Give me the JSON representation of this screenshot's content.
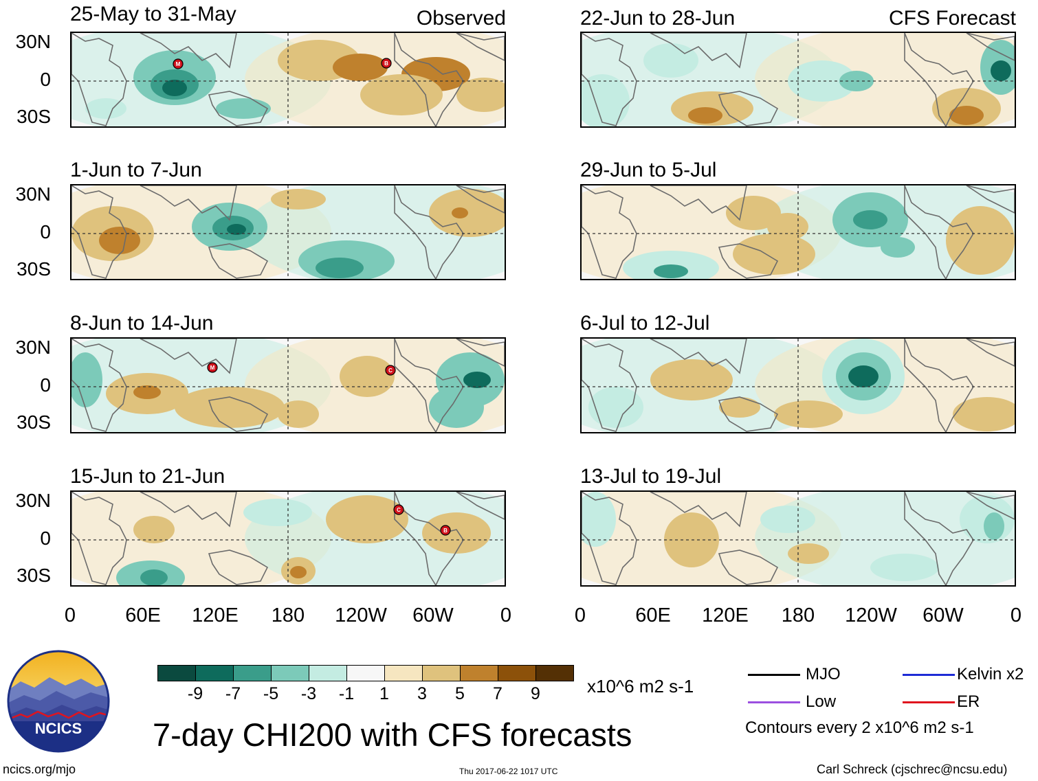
{
  "figure": {
    "main_title": "7-day CHI200 with CFS forecasts",
    "units": "x10^6 m2 s-1",
    "contours_note": "Contours every 2 x10^6 m2 s-1",
    "footer_left": "ncics.org/mjo",
    "footer_center": "Thu 2017-06-22 1017 UTC",
    "footer_right": "Carl Schreck (cjschrec@ncsu.edu)",
    "logo_text": "NCICS"
  },
  "columns": {
    "observed_label": "Observed",
    "forecast_label": "CFS Forecast"
  },
  "panels": [
    {
      "title": "25-May to 31-May",
      "tag": "Observed",
      "storms": [
        "M",
        "B"
      ]
    },
    {
      "title": "1-Jun to 7-Jun",
      "storms": []
    },
    {
      "title": "8-Jun to 14-Jun",
      "storms": [
        "M",
        "C"
      ]
    },
    {
      "title": "15-Jun to 21-Jun",
      "storms": [
        "C",
        "B"
      ]
    },
    {
      "title": "22-Jun to 28-Jun",
      "tag": "CFS Forecast",
      "storms": []
    },
    {
      "title": "29-Jun to 5-Jul",
      "storms": []
    },
    {
      "title": "6-Jul to 12-Jul",
      "storms": []
    },
    {
      "title": "13-Jul to 19-Jul",
      "storms": []
    }
  ],
  "axes": {
    "y_ticks": [
      "30N",
      "0",
      "30S"
    ],
    "x_ticks": [
      "0",
      "60E",
      "120E",
      "180",
      "120W",
      "60W",
      "0"
    ]
  },
  "colorbar": {
    "colors": [
      "#0b4a3f",
      "#0e6b5c",
      "#3a9d8a",
      "#7ccab9",
      "#c4ece2",
      "#f7f7f7",
      "#f6e6c0",
      "#dfc27d",
      "#bf812d",
      "#8c510a",
      "#543005"
    ],
    "labels": [
      "-9",
      "-7",
      "-5",
      "-3",
      "-1",
      "1",
      "3",
      "5",
      "7",
      "9"
    ]
  },
  "legend": [
    {
      "label": "MJO",
      "color": "#000000"
    },
    {
      "label": "Kelvin x2",
      "color": "#1e2bd6"
    },
    {
      "label": "Low",
      "color": "#9b4fe0"
    },
    {
      "label": "ER",
      "color": "#e0141e"
    }
  ]
}
